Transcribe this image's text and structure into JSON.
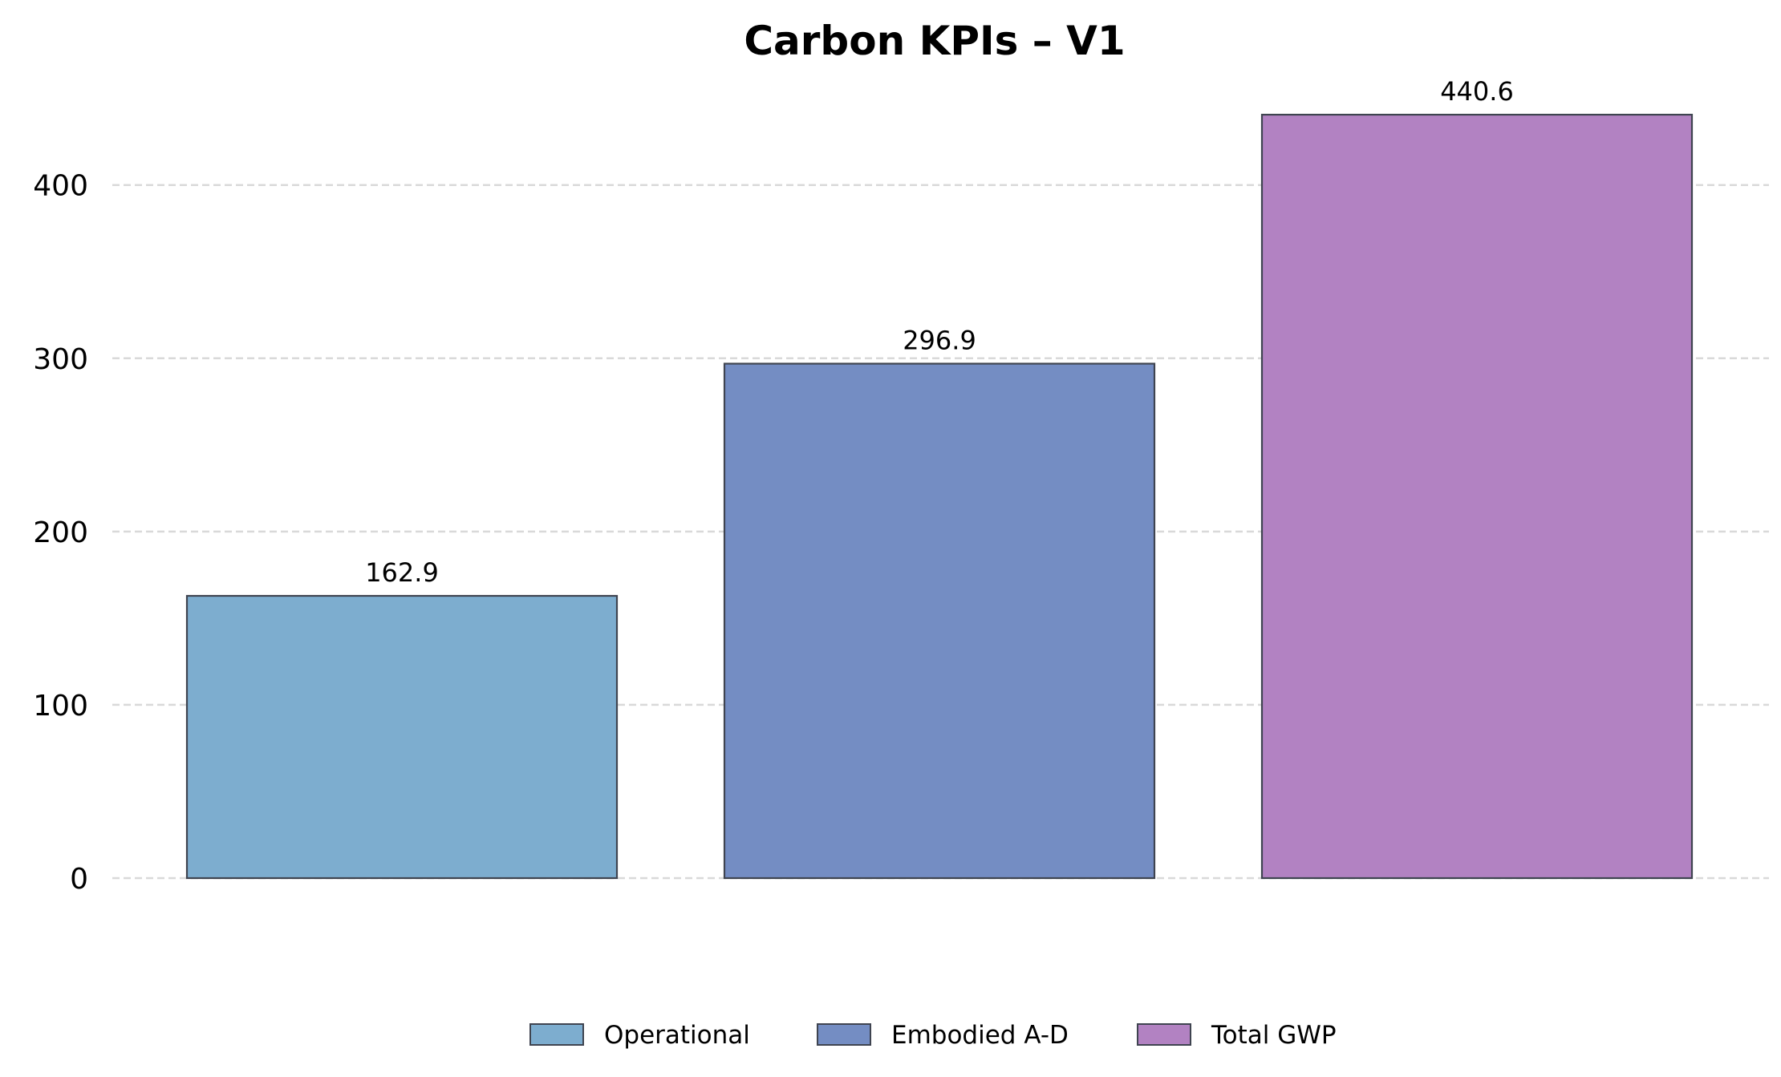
{
  "chart_data": {
    "type": "bar",
    "title": "Carbon KPIs – V1",
    "xlabel": "",
    "ylabel": "",
    "categories": [
      "Operational",
      "Embodied A-D",
      "Total GWP"
    ],
    "values": [
      162.9,
      296.9,
      440.6
    ],
    "data_labels": [
      "162.9",
      "296.9",
      "440.6"
    ],
    "colors": [
      "#7dadcf",
      "#748dc3",
      "#b282c2"
    ],
    "bar_edge_color": "#3f4450",
    "ylim": [
      0,
      440.6
    ],
    "yticks": [
      0,
      100,
      200,
      300,
      400
    ],
    "ytick_labels": [
      "0",
      "100",
      "200",
      "300",
      "400"
    ],
    "grid": true,
    "grid_style": "dashed",
    "legend_position": "bottom-center",
    "legend": [
      "Operational",
      "Embodied A-D",
      "Total GWP"
    ]
  }
}
